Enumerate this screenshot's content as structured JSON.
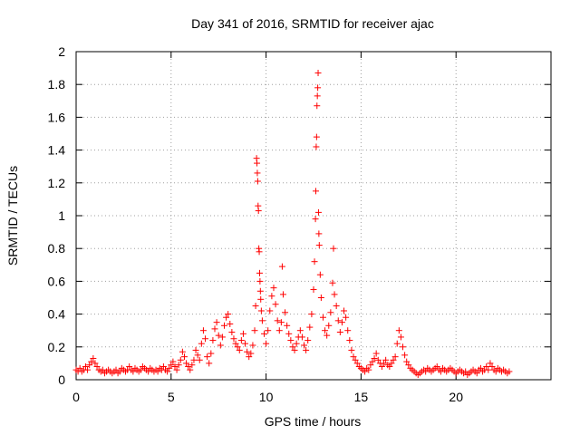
{
  "chart_data": {
    "type": "scatter",
    "title": "Day 341 of 2016, SRMTID for receiver ajac",
    "xlabel": "GPS time / hours",
    "ylabel": "SRMTID / TECUs",
    "xlim": [
      0,
      25
    ],
    "ylim": [
      0,
      2
    ],
    "xticks": [
      0,
      5,
      10,
      15,
      20
    ],
    "yticks": [
      0,
      0.2,
      0.4,
      0.6,
      0.8,
      1,
      1.2,
      1.4,
      1.6,
      1.8,
      2
    ],
    "ytick_labels": [
      "0",
      "0.2",
      "0.4",
      "0.6",
      "0.8",
      "1",
      "1.2",
      "1.4",
      "1.6",
      "1.8",
      "2"
    ],
    "xtick_labels": [
      "0",
      "5",
      "10",
      "15",
      "20"
    ],
    "grid": true,
    "marker": "+",
    "color": "#ff0000",
    "series": [
      {
        "name": "SRMTID",
        "points": [
          [
            0.0,
            0.06
          ],
          [
            0.1,
            0.05
          ],
          [
            0.2,
            0.07
          ],
          [
            0.3,
            0.05
          ],
          [
            0.4,
            0.06
          ],
          [
            0.5,
            0.08
          ],
          [
            0.6,
            0.06
          ],
          [
            0.7,
            0.09
          ],
          [
            0.8,
            0.11
          ],
          [
            0.9,
            0.13
          ],
          [
            1.0,
            0.1
          ],
          [
            1.1,
            0.08
          ],
          [
            1.2,
            0.06
          ],
          [
            1.3,
            0.05
          ],
          [
            1.4,
            0.06
          ],
          [
            1.5,
            0.04
          ],
          [
            1.6,
            0.05
          ],
          [
            1.7,
            0.06
          ],
          [
            1.8,
            0.05
          ],
          [
            1.9,
            0.04
          ],
          [
            2.0,
            0.05
          ],
          [
            2.1,
            0.06
          ],
          [
            2.2,
            0.04
          ],
          [
            2.3,
            0.05
          ],
          [
            2.4,
            0.07
          ],
          [
            2.5,
            0.06
          ],
          [
            2.6,
            0.05
          ],
          [
            2.7,
            0.06
          ],
          [
            2.8,
            0.08
          ],
          [
            2.9,
            0.06
          ],
          [
            3.0,
            0.05
          ],
          [
            3.1,
            0.07
          ],
          [
            3.2,
            0.06
          ],
          [
            3.3,
            0.05
          ],
          [
            3.4,
            0.06
          ],
          [
            3.5,
            0.08
          ],
          [
            3.6,
            0.07
          ],
          [
            3.7,
            0.06
          ],
          [
            3.8,
            0.05
          ],
          [
            3.9,
            0.07
          ],
          [
            4.0,
            0.06
          ],
          [
            4.1,
            0.05
          ],
          [
            4.2,
            0.06
          ],
          [
            4.3,
            0.05
          ],
          [
            4.4,
            0.07
          ],
          [
            4.5,
            0.06
          ],
          [
            4.6,
            0.08
          ],
          [
            4.7,
            0.06
          ],
          [
            4.8,
            0.05
          ],
          [
            4.9,
            0.07
          ],
          [
            5.0,
            0.09
          ],
          [
            5.1,
            0.11
          ],
          [
            5.2,
            0.08
          ],
          [
            5.3,
            0.06
          ],
          [
            5.4,
            0.09
          ],
          [
            5.5,
            0.12
          ],
          [
            5.6,
            0.17
          ],
          [
            5.7,
            0.14
          ],
          [
            5.8,
            0.1
          ],
          [
            5.9,
            0.08
          ],
          [
            6.0,
            0.06
          ],
          [
            6.1,
            0.09
          ],
          [
            6.2,
            0.12
          ],
          [
            6.3,
            0.18
          ],
          [
            6.4,
            0.15
          ],
          [
            6.5,
            0.12
          ],
          [
            6.6,
            0.22
          ],
          [
            6.7,
            0.3
          ],
          [
            6.8,
            0.25
          ],
          [
            6.9,
            0.14
          ],
          [
            7.0,
            0.1
          ],
          [
            7.1,
            0.16
          ],
          [
            7.2,
            0.24
          ],
          [
            7.3,
            0.31
          ],
          [
            7.4,
            0.35
          ],
          [
            7.5,
            0.27
          ],
          [
            7.6,
            0.21
          ],
          [
            7.7,
            0.26
          ],
          [
            7.8,
            0.33
          ],
          [
            7.9,
            0.38
          ],
          [
            8.0,
            0.4
          ],
          [
            8.1,
            0.34
          ],
          [
            8.2,
            0.29
          ],
          [
            8.3,
            0.25
          ],
          [
            8.4,
            0.22
          ],
          [
            8.5,
            0.2
          ],
          [
            8.6,
            0.18
          ],
          [
            8.7,
            0.24
          ],
          [
            8.8,
            0.28
          ],
          [
            8.9,
            0.22
          ],
          [
            9.0,
            0.17
          ],
          [
            9.1,
            0.14
          ],
          [
            9.2,
            0.16
          ],
          [
            9.3,
            0.21
          ],
          [
            9.4,
            0.3
          ],
          [
            9.45,
            0.45
          ],
          [
            9.5,
            1.35
          ],
          [
            9.52,
            1.32
          ],
          [
            9.54,
            1.26
          ],
          [
            9.56,
            1.21
          ],
          [
            9.58,
            1.06
          ],
          [
            9.6,
            1.03
          ],
          [
            9.62,
            0.8
          ],
          [
            9.64,
            0.78
          ],
          [
            9.66,
            0.65
          ],
          [
            9.68,
            0.6
          ],
          [
            9.7,
            0.54
          ],
          [
            9.72,
            0.49
          ],
          [
            9.75,
            0.42
          ],
          [
            9.8,
            0.36
          ],
          [
            9.9,
            0.28
          ],
          [
            10.0,
            0.22
          ],
          [
            10.1,
            0.3
          ],
          [
            10.2,
            0.42
          ],
          [
            10.3,
            0.51
          ],
          [
            10.4,
            0.56
          ],
          [
            10.5,
            0.46
          ],
          [
            10.6,
            0.36
          ],
          [
            10.7,
            0.3
          ],
          [
            10.8,
            0.35
          ],
          [
            10.85,
            0.69
          ],
          [
            10.9,
            0.52
          ],
          [
            11.0,
            0.41
          ],
          [
            11.1,
            0.33
          ],
          [
            11.2,
            0.28
          ],
          [
            11.3,
            0.24
          ],
          [
            11.4,
            0.2
          ],
          [
            11.5,
            0.18
          ],
          [
            11.6,
            0.22
          ],
          [
            11.7,
            0.26
          ],
          [
            11.8,
            0.3
          ],
          [
            11.9,
            0.26
          ],
          [
            12.0,
            0.21
          ],
          [
            12.1,
            0.18
          ],
          [
            12.2,
            0.24
          ],
          [
            12.3,
            0.32
          ],
          [
            12.4,
            0.4
          ],
          [
            12.5,
            0.55
          ],
          [
            12.55,
            0.72
          ],
          [
            12.6,
            0.98
          ],
          [
            12.62,
            1.15
          ],
          [
            12.64,
            1.42
          ],
          [
            12.66,
            1.48
          ],
          [
            12.68,
            1.67
          ],
          [
            12.7,
            1.73
          ],
          [
            12.72,
            1.78
          ],
          [
            12.74,
            1.87
          ],
          [
            12.76,
            1.02
          ],
          [
            12.78,
            0.89
          ],
          [
            12.8,
            0.82
          ],
          [
            12.85,
            0.64
          ],
          [
            12.9,
            0.5
          ],
          [
            13.0,
            0.38
          ],
          [
            13.1,
            0.3
          ],
          [
            13.2,
            0.27
          ],
          [
            13.3,
            0.33
          ],
          [
            13.4,
            0.41
          ],
          [
            13.5,
            0.59
          ],
          [
            13.55,
            0.8
          ],
          [
            13.6,
            0.52
          ],
          [
            13.7,
            0.45
          ],
          [
            13.8,
            0.36
          ],
          [
            13.9,
            0.29
          ],
          [
            14.0,
            0.35
          ],
          [
            14.1,
            0.42
          ],
          [
            14.2,
            0.38
          ],
          [
            14.3,
            0.3
          ],
          [
            14.4,
            0.24
          ],
          [
            14.5,
            0.18
          ],
          [
            14.6,
            0.14
          ],
          [
            14.7,
            0.12
          ],
          [
            14.8,
            0.1
          ],
          [
            14.9,
            0.08
          ],
          [
            15.0,
            0.07
          ],
          [
            15.1,
            0.06
          ],
          [
            15.2,
            0.05
          ],
          [
            15.3,
            0.07
          ],
          [
            15.4,
            0.06
          ],
          [
            15.5,
            0.09
          ],
          [
            15.6,
            0.11
          ],
          [
            15.7,
            0.13
          ],
          [
            15.8,
            0.16
          ],
          [
            15.9,
            0.12
          ],
          [
            16.0,
            0.1
          ],
          [
            16.1,
            0.08
          ],
          [
            16.2,
            0.1
          ],
          [
            16.3,
            0.12
          ],
          [
            16.4,
            0.09
          ],
          [
            16.5,
            0.08
          ],
          [
            16.6,
            0.1
          ],
          [
            16.7,
            0.12
          ],
          [
            16.8,
            0.14
          ],
          [
            16.9,
            0.22
          ],
          [
            17.0,
            0.3
          ],
          [
            17.1,
            0.26
          ],
          [
            17.2,
            0.2
          ],
          [
            17.3,
            0.15
          ],
          [
            17.4,
            0.11
          ],
          [
            17.5,
            0.09
          ],
          [
            17.6,
            0.07
          ],
          [
            17.7,
            0.06
          ],
          [
            17.8,
            0.05
          ],
          [
            17.9,
            0.04
          ],
          [
            18.0,
            0.03
          ],
          [
            18.1,
            0.04
          ],
          [
            18.2,
            0.05
          ],
          [
            18.3,
            0.06
          ],
          [
            18.4,
            0.05
          ],
          [
            18.5,
            0.07
          ],
          [
            18.6,
            0.06
          ],
          [
            18.7,
            0.05
          ],
          [
            18.8,
            0.06
          ],
          [
            18.9,
            0.07
          ],
          [
            19.0,
            0.08
          ],
          [
            19.1,
            0.06
          ],
          [
            19.2,
            0.05
          ],
          [
            19.3,
            0.07
          ],
          [
            19.4,
            0.06
          ],
          [
            19.5,
            0.05
          ],
          [
            19.6,
            0.06
          ],
          [
            19.7,
            0.07
          ],
          [
            19.8,
            0.06
          ],
          [
            19.9,
            0.05
          ],
          [
            20.0,
            0.04
          ],
          [
            20.1,
            0.05
          ],
          [
            20.2,
            0.06
          ],
          [
            20.3,
            0.05
          ],
          [
            20.4,
            0.04
          ],
          [
            20.5,
            0.05
          ],
          [
            20.6,
            0.03
          ],
          [
            20.7,
            0.04
          ],
          [
            20.8,
            0.05
          ],
          [
            20.9,
            0.06
          ],
          [
            21.0,
            0.05
          ],
          [
            21.1,
            0.04
          ],
          [
            21.2,
            0.06
          ],
          [
            21.3,
            0.07
          ],
          [
            21.4,
            0.05
          ],
          [
            21.5,
            0.06
          ],
          [
            21.6,
            0.08
          ],
          [
            21.7,
            0.06
          ],
          [
            21.8,
            0.1
          ],
          [
            21.9,
            0.08
          ],
          [
            22.0,
            0.06
          ],
          [
            22.1,
            0.05
          ],
          [
            22.2,
            0.07
          ],
          [
            22.3,
            0.06
          ],
          [
            22.4,
            0.05
          ],
          [
            22.5,
            0.06
          ],
          [
            22.6,
            0.05
          ],
          [
            22.7,
            0.04
          ],
          [
            22.8,
            0.05
          ]
        ]
      }
    ]
  }
}
